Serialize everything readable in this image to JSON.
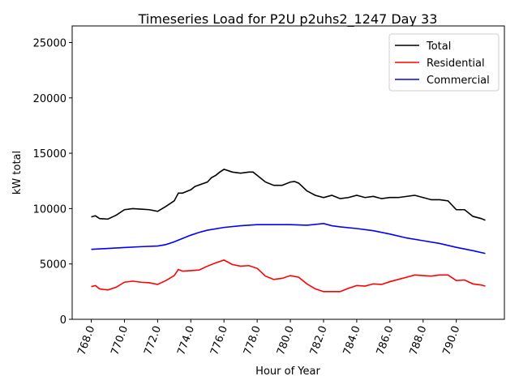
{
  "chart_data": {
    "type": "line",
    "title": "Timeseries Load for P2U p2uhs2_1247  Day 33",
    "xlabel": "Hour of Year",
    "ylabel": "kW total",
    "xlim": [
      766.85,
      792.9
    ],
    "ylim": [
      0,
      26500
    ],
    "xticks": [
      768,
      770,
      772,
      774,
      776,
      778,
      780,
      782,
      784,
      786,
      788,
      790
    ],
    "xtick_labels": [
      "768.0",
      "770.0",
      "772.0",
      "774.0",
      "776.0",
      "778.0",
      "780.0",
      "782.0",
      "784.0",
      "786.0",
      "788.0",
      "790.0"
    ],
    "yticks": [
      0,
      5000,
      10000,
      15000,
      20000,
      25000
    ],
    "ytick_labels": [
      "0",
      "5000",
      "10000",
      "15000",
      "20000",
      "25000"
    ],
    "grid": false,
    "legend_position": "top-right",
    "series": [
      {
        "name": "Total",
        "color": "#000000",
        "points": [
          [
            768,
            9250
          ],
          [
            768.25,
            9350
          ],
          [
            768.5,
            9100
          ],
          [
            769,
            9050
          ],
          [
            769.5,
            9400
          ],
          [
            770,
            9900
          ],
          [
            770.5,
            10000
          ],
          [
            771,
            9950
          ],
          [
            771.5,
            9900
          ],
          [
            772,
            9750
          ],
          [
            772.5,
            10200
          ],
          [
            773,
            10700
          ],
          [
            773.25,
            11400
          ],
          [
            773.5,
            11400
          ],
          [
            774,
            11700
          ],
          [
            774.25,
            12000
          ],
          [
            775,
            12400
          ],
          [
            775.25,
            12800
          ],
          [
            775.5,
            13000
          ],
          [
            775.75,
            13300
          ],
          [
            776,
            13550
          ],
          [
            776.5,
            13300
          ],
          [
            777,
            13200
          ],
          [
            777.5,
            13300
          ],
          [
            777.75,
            13300
          ],
          [
            778,
            13000
          ],
          [
            778.5,
            12400
          ],
          [
            779,
            12100
          ],
          [
            779.5,
            12100
          ],
          [
            780,
            12400
          ],
          [
            780.25,
            12450
          ],
          [
            780.5,
            12300
          ],
          [
            781,
            11600
          ],
          [
            781.5,
            11200
          ],
          [
            782,
            11000
          ],
          [
            782.5,
            11200
          ],
          [
            783,
            10900
          ],
          [
            783.5,
            11000
          ],
          [
            784,
            11200
          ],
          [
            784.5,
            11000
          ],
          [
            785,
            11100
          ],
          [
            785.5,
            10900
          ],
          [
            786,
            11000
          ],
          [
            786.5,
            11000
          ],
          [
            787,
            11100
          ],
          [
            787.5,
            11200
          ],
          [
            788,
            11000
          ],
          [
            788.5,
            10800
          ],
          [
            789,
            10800
          ],
          [
            789.5,
            10700
          ],
          [
            790,
            9900
          ],
          [
            790.5,
            9900
          ],
          [
            791,
            9300
          ],
          [
            791.5,
            9100
          ],
          [
            791.75,
            8950
          ]
        ]
      },
      {
        "name": "Residential",
        "color": "#ff0000",
        "points": [
          [
            768,
            2950
          ],
          [
            768.25,
            3050
          ],
          [
            768.5,
            2750
          ],
          [
            769,
            2650
          ],
          [
            769.5,
            2900
          ],
          [
            770,
            3350
          ],
          [
            770.5,
            3450
          ],
          [
            771,
            3350
          ],
          [
            771.5,
            3300
          ],
          [
            772,
            3150
          ],
          [
            772.5,
            3500
          ],
          [
            773,
            3950
          ],
          [
            773.25,
            4500
          ],
          [
            773.5,
            4350
          ],
          [
            774,
            4400
          ],
          [
            774.5,
            4450
          ],
          [
            775,
            4800
          ],
          [
            775.5,
            5100
          ],
          [
            776,
            5350
          ],
          [
            776.5,
            4950
          ],
          [
            777,
            4800
          ],
          [
            777.5,
            4850
          ],
          [
            778,
            4600
          ],
          [
            778.5,
            3900
          ],
          [
            779,
            3600
          ],
          [
            779.5,
            3700
          ],
          [
            780,
            3950
          ],
          [
            780.5,
            3800
          ],
          [
            781,
            3200
          ],
          [
            781.5,
            2750
          ],
          [
            782,
            2500
          ],
          [
            782.5,
            2500
          ],
          [
            783,
            2500
          ],
          [
            783.5,
            2800
          ],
          [
            784,
            3050
          ],
          [
            784.5,
            3000
          ],
          [
            785,
            3200
          ],
          [
            785.5,
            3150
          ],
          [
            786,
            3400
          ],
          [
            786.5,
            3600
          ],
          [
            787,
            3800
          ],
          [
            787.5,
            4000
          ],
          [
            788,
            3950
          ],
          [
            788.5,
            3900
          ],
          [
            789,
            4000
          ],
          [
            789.5,
            4000
          ],
          [
            790,
            3500
          ],
          [
            790.5,
            3550
          ],
          [
            791,
            3200
          ],
          [
            791.5,
            3100
          ],
          [
            791.75,
            3000
          ]
        ]
      },
      {
        "name": "Commercial",
        "color": "#0000ff",
        "points": [
          [
            768,
            6320
          ],
          [
            769,
            6400
          ],
          [
            770,
            6480
          ],
          [
            771,
            6560
          ],
          [
            772,
            6620
          ],
          [
            772.5,
            6750
          ],
          [
            773,
            7000
          ],
          [
            773.5,
            7300
          ],
          [
            774,
            7600
          ],
          [
            774.5,
            7850
          ],
          [
            775,
            8050
          ],
          [
            776,
            8300
          ],
          [
            777,
            8450
          ],
          [
            778,
            8550
          ],
          [
            779,
            8550
          ],
          [
            780,
            8550
          ],
          [
            781,
            8500
          ],
          [
            782,
            8650
          ],
          [
            782.5,
            8450
          ],
          [
            783,
            8350
          ],
          [
            784,
            8200
          ],
          [
            785,
            8000
          ],
          [
            786,
            7700
          ],
          [
            787,
            7350
          ],
          [
            788,
            7100
          ],
          [
            789,
            6850
          ],
          [
            790,
            6500
          ],
          [
            791,
            6200
          ],
          [
            791.75,
            5950
          ]
        ]
      }
    ]
  }
}
